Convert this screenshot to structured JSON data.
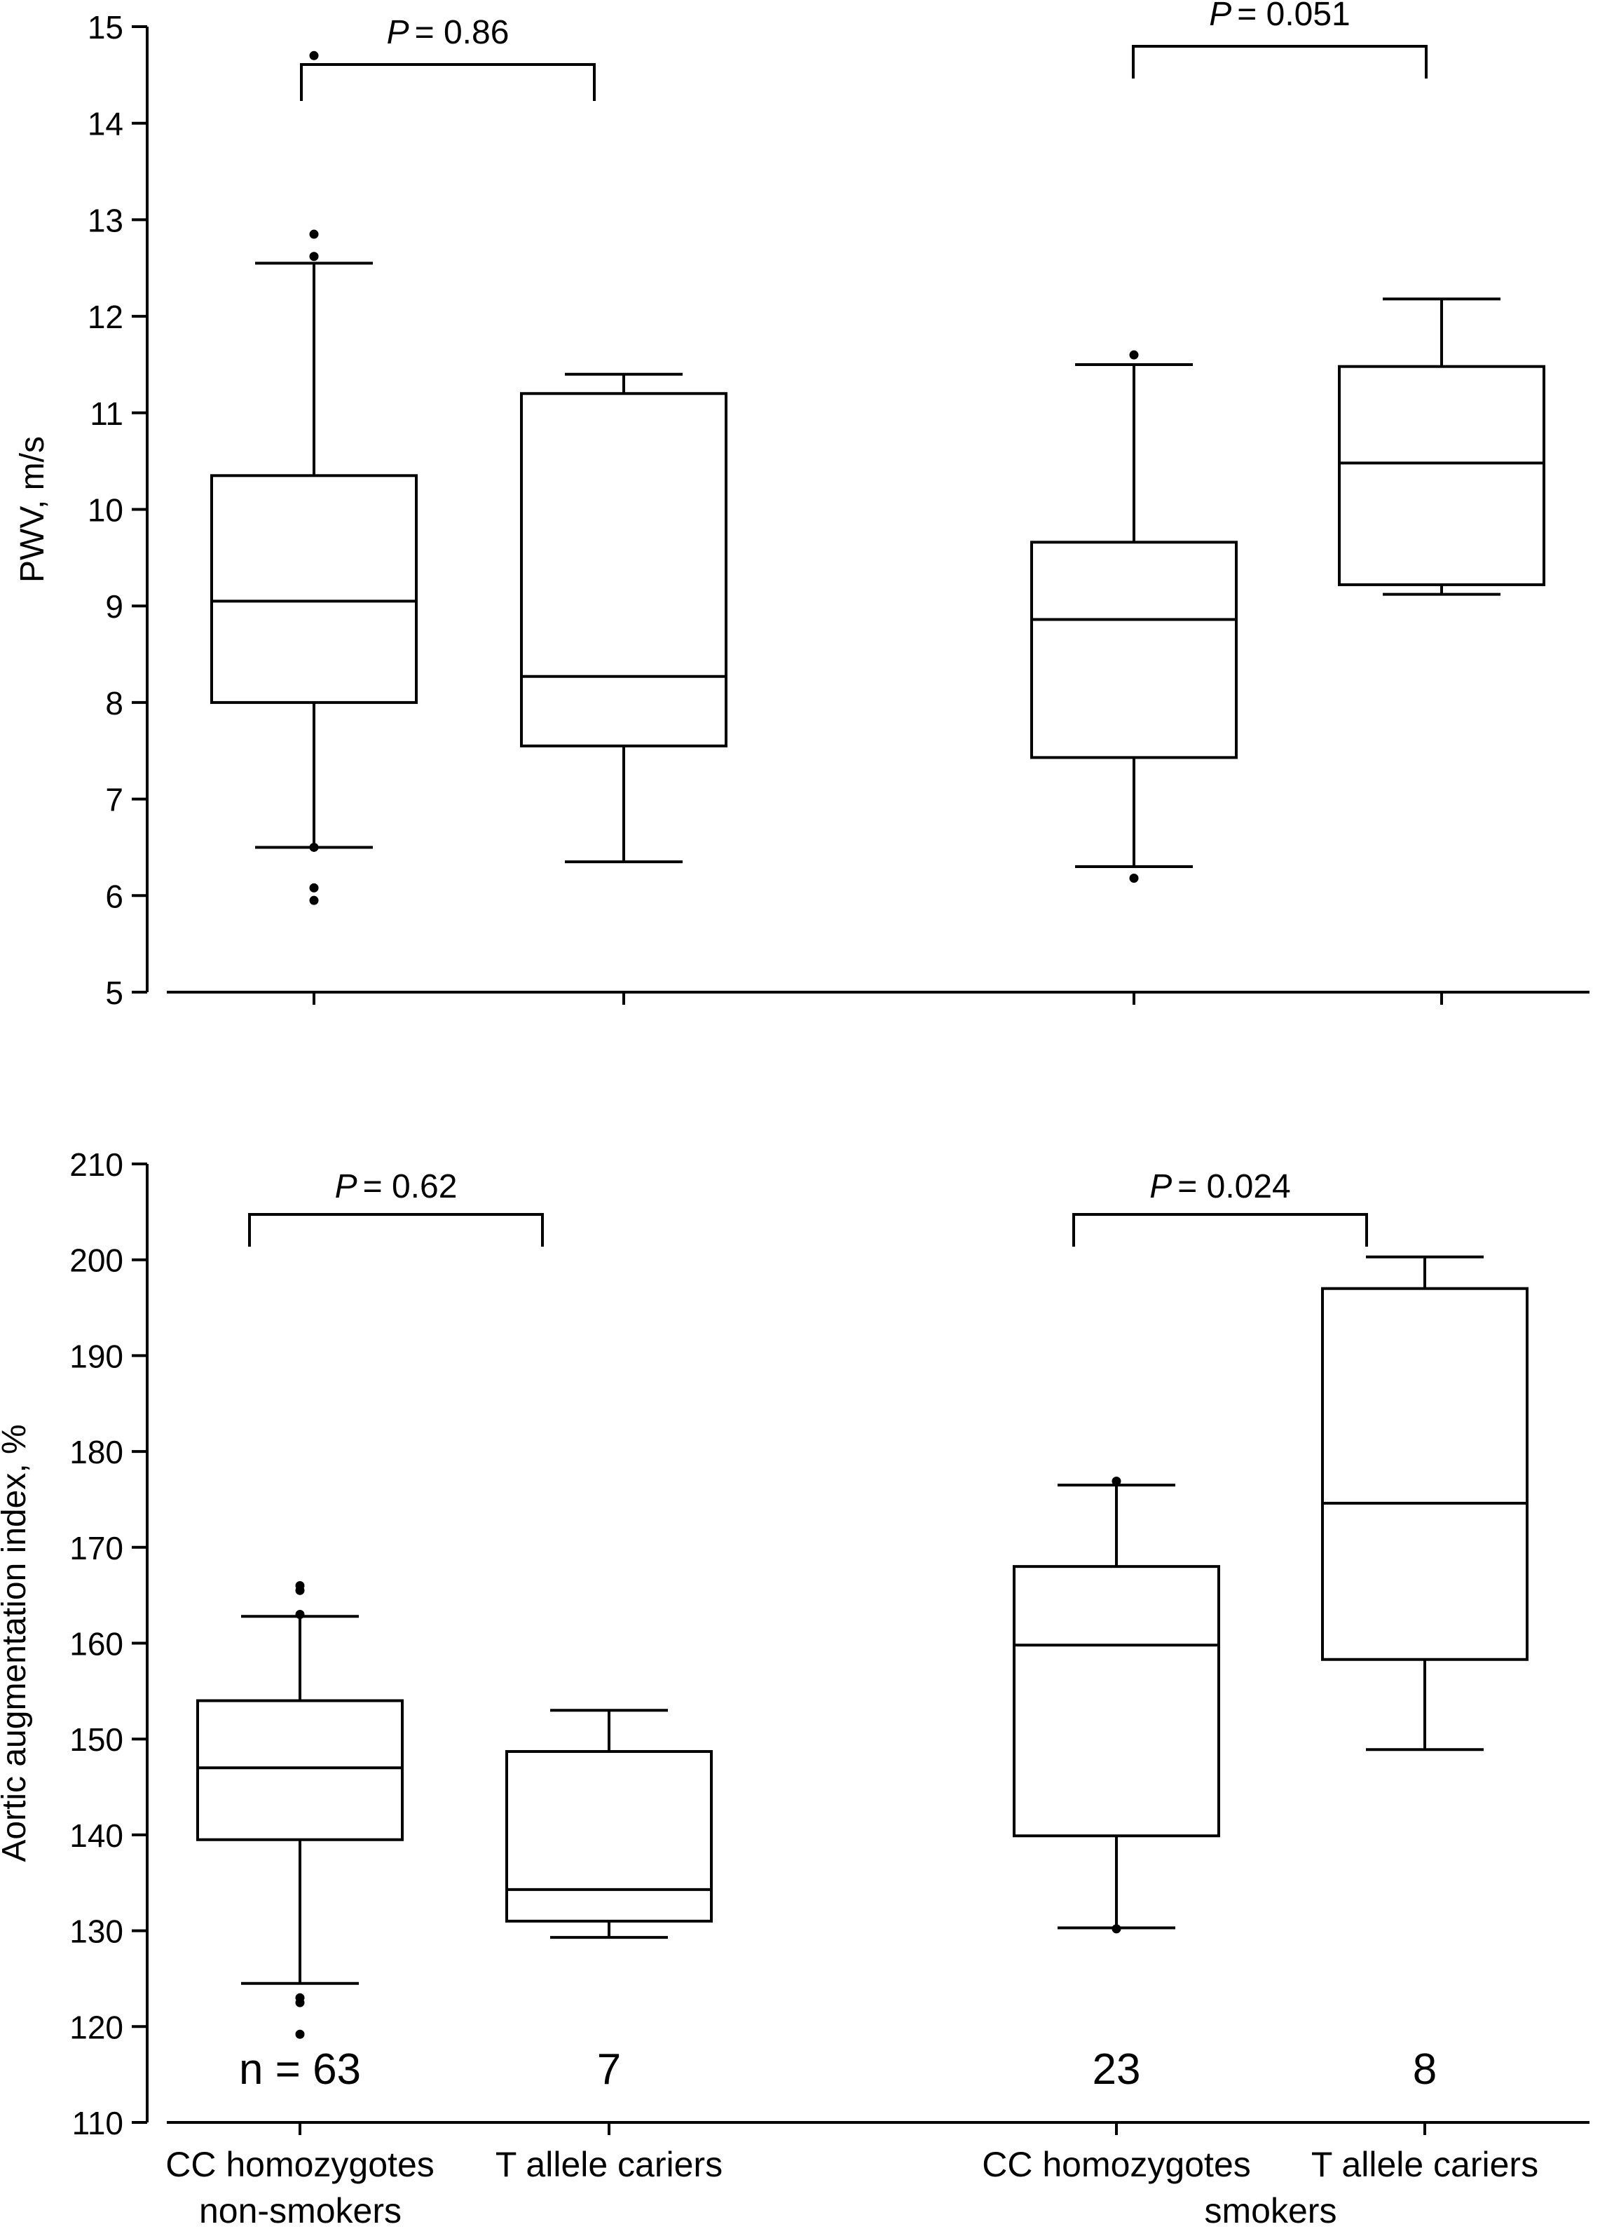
{
  "chart_data": [
    {
      "type": "box",
      "ylabel": "PWV, m/s",
      "ylim": [
        5,
        15
      ],
      "yticks": [
        5,
        6,
        7,
        8,
        9,
        10,
        11,
        12,
        13,
        14,
        15
      ],
      "boxes": [
        {
          "group": "non-smokers",
          "genotype": "CC homozygotes",
          "whisker_low": 6.5,
          "q1": 8.0,
          "median": 9.05,
          "q3": 10.35,
          "whisker_high": 12.55,
          "outliers": [
            5.95,
            6.08,
            6.5,
            12.62,
            12.85,
            14.7
          ]
        },
        {
          "group": "non-smokers",
          "genotype": "T allele cariers",
          "whisker_low": 6.35,
          "q1": 7.55,
          "median": 8.27,
          "q3": 11.2,
          "whisker_high": 11.4,
          "outliers": []
        },
        {
          "group": "smokers",
          "genotype": "CC homozygotes",
          "whisker_low": 6.3,
          "q1": 7.43,
          "median": 8.86,
          "q3": 9.66,
          "whisker_high": 11.5,
          "outliers": [
            6.18,
            11.6
          ]
        },
        {
          "group": "smokers",
          "genotype": "T allele cariers",
          "whisker_low": 9.12,
          "q1": 9.22,
          "median": 10.48,
          "q3": 11.48,
          "whisker_high": 12.18,
          "outliers": []
        }
      ],
      "comparisons": [
        {
          "p_label": "P",
          "p_value": "= 0.86",
          "boxes": [
            0,
            1
          ]
        },
        {
          "p_label": "P",
          "p_value": "= 0.051",
          "boxes": [
            2,
            3
          ]
        }
      ]
    },
    {
      "type": "box",
      "ylabel": "Aortic augmentation index, %",
      "ylim": [
        110,
        210
      ],
      "yticks": [
        110,
        120,
        130,
        140,
        150,
        160,
        170,
        180,
        190,
        200,
        210
      ],
      "boxes": [
        {
          "group": "non-smokers",
          "genotype": "CC homozygotes",
          "n": "n = 63",
          "whisker_low": 124.5,
          "q1": 139.5,
          "median": 147.0,
          "q3": 154.0,
          "whisker_high": 162.8,
          "outliers": [
            119.2,
            122.5,
            123.0,
            163.0,
            165.5,
            166.0
          ]
        },
        {
          "group": "non-smokers",
          "genotype": "T allele cariers",
          "n": "7",
          "whisker_low": 129.3,
          "q1": 131.0,
          "median": 134.3,
          "q3": 148.7,
          "whisker_high": 153.0,
          "outliers": []
        },
        {
          "group": "smokers",
          "genotype": "CC homozygotes",
          "n": "23",
          "whisker_low": 130.3,
          "q1": 139.9,
          "median": 159.8,
          "q3": 168.0,
          "whisker_high": 176.5,
          "outliers": [
            130.2,
            176.9
          ]
        },
        {
          "group": "smokers",
          "genotype": "T allele cariers",
          "n": "8",
          "whisker_low": 148.9,
          "q1": 158.3,
          "median": 174.6,
          "q3": 197.0,
          "whisker_high": 200.3,
          "outliers": []
        }
      ],
      "comparisons": [
        {
          "p_label": "P",
          "p_value": "= 0.62",
          "boxes": [
            0,
            1
          ]
        },
        {
          "p_label": "P",
          "p_value": "= 0.024",
          "boxes": [
            2,
            3
          ]
        }
      ]
    }
  ],
  "group_labels": [
    "non-smokers",
    "smokers"
  ]
}
